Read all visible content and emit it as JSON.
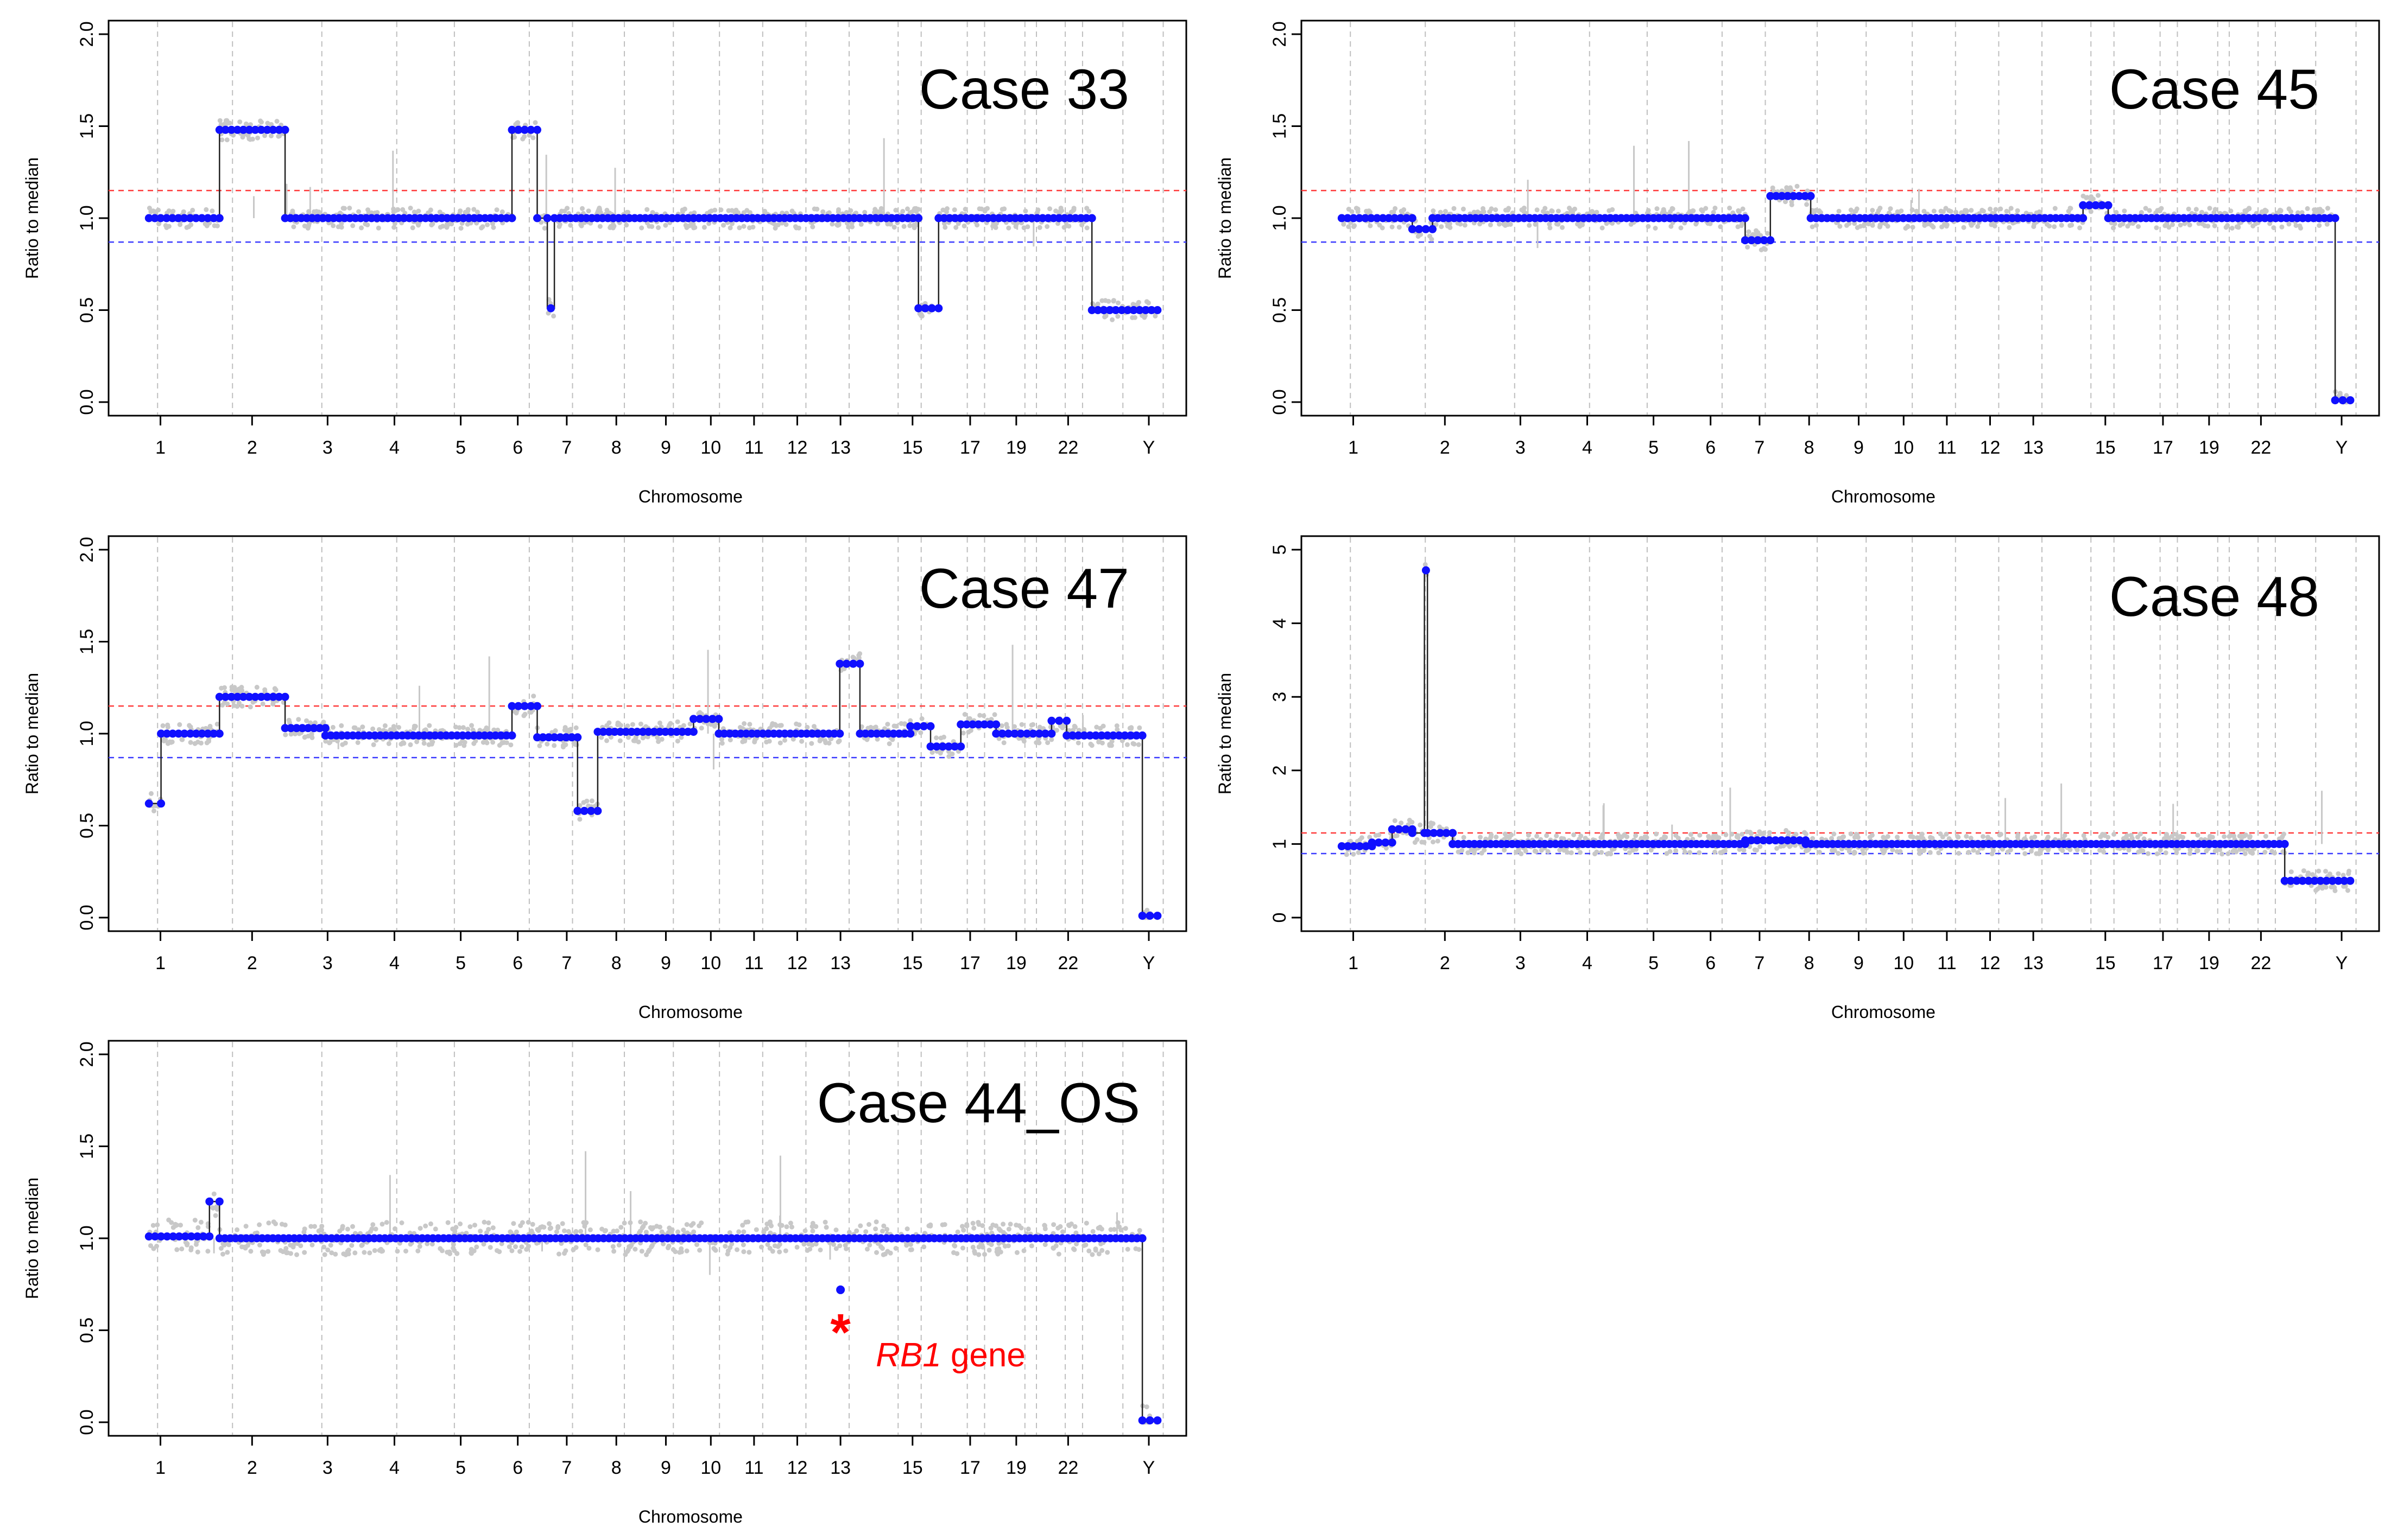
{
  "figure": {
    "description_type": "copy-number ratio plots",
    "colors": {
      "segment_points": "#1010ff",
      "raw_points": "#c8c8c8",
      "segment_line": "#222222",
      "gain_threshold": "#ff3b3b",
      "loss_threshold": "#3b3bff",
      "chromosome_separator": "#bfbfbf",
      "annotation": "#ff0000"
    }
  },
  "chart_data": [
    {
      "type": "scatter",
      "title": "Case 33",
      "xlabel": "Chromosome",
      "ylabel": "Ratio to median",
      "ylim": [
        0,
        2
      ],
      "yticks": [
        "0.0",
        "0.5",
        "1.0",
        "1.5",
        "2.0"
      ],
      "xtick_labels": [
        "1",
        "2",
        "3",
        "4",
        "5",
        "6",
        "7",
        "8",
        "9",
        "10",
        "11",
        "12",
        "13",
        "15",
        "17",
        "19",
        "22",
        "Y"
      ],
      "thresholds": {
        "gain": 1.15,
        "loss": 0.87
      },
      "segments": [
        {
          "from": 0.0,
          "to": 0.07,
          "value": 1.0
        },
        {
          "from": 0.07,
          "to": 0.135,
          "value": 1.48
        },
        {
          "from": 0.135,
          "to": 0.36,
          "value": 1.0
        },
        {
          "from": 0.36,
          "to": 0.385,
          "value": 1.48
        },
        {
          "from": 0.385,
          "to": 0.395,
          "value": 1.0
        },
        {
          "from": 0.395,
          "to": 0.402,
          "value": 0.51
        },
        {
          "from": 0.402,
          "to": 0.763,
          "value": 1.0
        },
        {
          "from": 0.763,
          "to": 0.783,
          "value": 0.51
        },
        {
          "from": 0.783,
          "to": 0.935,
          "value": 1.0
        },
        {
          "from": 0.935,
          "to": 1.0,
          "value": 0.5
        }
      ]
    },
    {
      "type": "scatter",
      "title": "Case 45",
      "xlabel": "Chromosome",
      "ylabel": "Ratio to median",
      "ylim": [
        0,
        2
      ],
      "yticks": [
        "0.0",
        "0.5",
        "1.0",
        "1.5",
        "2.0"
      ],
      "xtick_labels": [
        "1",
        "2",
        "3",
        "4",
        "5",
        "6",
        "7",
        "8",
        "9",
        "10",
        "11",
        "12",
        "13",
        "15",
        "17",
        "19",
        "22",
        "Y"
      ],
      "thresholds": {
        "gain": 1.15,
        "loss": 0.87
      },
      "segments": [
        {
          "from": 0.0,
          "to": 0.07,
          "value": 1.0
        },
        {
          "from": 0.07,
          "to": 0.09,
          "value": 0.94
        },
        {
          "from": 0.09,
          "to": 0.4,
          "value": 1.0
        },
        {
          "from": 0.4,
          "to": 0.425,
          "value": 0.88
        },
        {
          "from": 0.425,
          "to": 0.465,
          "value": 1.12
        },
        {
          "from": 0.465,
          "to": 0.735,
          "value": 1.0
        },
        {
          "from": 0.735,
          "to": 0.76,
          "value": 1.07
        },
        {
          "from": 0.76,
          "to": 0.985,
          "value": 1.0
        },
        {
          "from": 0.985,
          "to": 1.0,
          "value": 0.01
        }
      ]
    },
    {
      "type": "scatter",
      "title": "Case 47",
      "xlabel": "Chromosome",
      "ylabel": "Ratio to median",
      "ylim": [
        0,
        2
      ],
      "yticks": [
        "0.0",
        "0.5",
        "1.0",
        "1.5",
        "2.0"
      ],
      "xtick_labels": [
        "1",
        "2",
        "3",
        "4",
        "5",
        "6",
        "7",
        "8",
        "9",
        "10",
        "11",
        "12",
        "13",
        "15",
        "17",
        "19",
        "22",
        "Y"
      ],
      "thresholds": {
        "gain": 1.15,
        "loss": 0.87
      },
      "segments": [
        {
          "from": 0.0,
          "to": 0.012,
          "value": 0.62
        },
        {
          "from": 0.012,
          "to": 0.07,
          "value": 1.0
        },
        {
          "from": 0.07,
          "to": 0.135,
          "value": 1.2
        },
        {
          "from": 0.135,
          "to": 0.175,
          "value": 1.03
        },
        {
          "from": 0.175,
          "to": 0.36,
          "value": 0.99
        },
        {
          "from": 0.36,
          "to": 0.385,
          "value": 1.15
        },
        {
          "from": 0.385,
          "to": 0.425,
          "value": 0.98
        },
        {
          "from": 0.425,
          "to": 0.445,
          "value": 0.58
        },
        {
          "from": 0.445,
          "to": 0.54,
          "value": 1.01
        },
        {
          "from": 0.54,
          "to": 0.565,
          "value": 1.08
        },
        {
          "from": 0.565,
          "to": 0.685,
          "value": 1.0
        },
        {
          "from": 0.685,
          "to": 0.705,
          "value": 1.38
        },
        {
          "from": 0.705,
          "to": 0.755,
          "value": 1.0
        },
        {
          "from": 0.755,
          "to": 0.775,
          "value": 1.04
        },
        {
          "from": 0.775,
          "to": 0.805,
          "value": 0.93
        },
        {
          "from": 0.805,
          "to": 0.84,
          "value": 1.05
        },
        {
          "from": 0.84,
          "to": 0.895,
          "value": 1.0
        },
        {
          "from": 0.895,
          "to": 0.91,
          "value": 1.07
        },
        {
          "from": 0.91,
          "to": 0.985,
          "value": 0.99
        },
        {
          "from": 0.985,
          "to": 1.0,
          "value": 0.01
        }
      ]
    },
    {
      "type": "scatter",
      "title": "Case 48",
      "xlabel": "Chromosome",
      "ylabel": "Ratio to median",
      "ylim": [
        0,
        5
      ],
      "yticks": [
        "0",
        "1",
        "2",
        "3",
        "4",
        "5"
      ],
      "xtick_labels": [
        "1",
        "2",
        "3",
        "4",
        "5",
        "6",
        "7",
        "8",
        "9",
        "10",
        "11",
        "12",
        "13",
        "15",
        "17",
        "19",
        "22",
        "Y"
      ],
      "thresholds": {
        "gain": 1.15,
        "loss": 0.87
      },
      "segments": [
        {
          "from": 0.0,
          "to": 0.03,
          "value": 0.97
        },
        {
          "from": 0.03,
          "to": 0.05,
          "value": 1.02
        },
        {
          "from": 0.05,
          "to": 0.07,
          "value": 1.2
        },
        {
          "from": 0.07,
          "to": 0.082,
          "value": 1.15
        },
        {
          "from": 0.082,
          "to": 0.085,
          "value": 4.72
        },
        {
          "from": 0.085,
          "to": 0.11,
          "value": 1.15
        },
        {
          "from": 0.11,
          "to": 0.4,
          "value": 1.0
        },
        {
          "from": 0.4,
          "to": 0.46,
          "value": 1.05
        },
        {
          "from": 0.46,
          "to": 0.935,
          "value": 1.0
        },
        {
          "from": 0.935,
          "to": 1.0,
          "value": 0.5
        }
      ]
    },
    {
      "type": "scatter",
      "title": "Case 44_OS",
      "xlabel": "Chromosome",
      "ylabel": "Ratio to median",
      "ylim": [
        0,
        2
      ],
      "yticks": [
        "0.0",
        "0.5",
        "1.0",
        "1.5",
        "2.0"
      ],
      "xtick_labels": [
        "1",
        "2",
        "3",
        "4",
        "5",
        "6",
        "7",
        "8",
        "9",
        "10",
        "11",
        "12",
        "13",
        "15",
        "17",
        "19",
        "22",
        "Y"
      ],
      "thresholds": {},
      "segments": [
        {
          "from": 0.0,
          "to": 0.06,
          "value": 1.01
        },
        {
          "from": 0.06,
          "to": 0.07,
          "value": 1.2
        },
        {
          "from": 0.07,
          "to": 0.985,
          "value": 1.0
        },
        {
          "from": 0.985,
          "to": 1.0,
          "value": 0.01
        }
      ],
      "annotation": {
        "marker": "*",
        "gene_italic": "RB1",
        "gene_suffix": " gene",
        "chromosome": "13",
        "value": 0.72
      }
    }
  ]
}
